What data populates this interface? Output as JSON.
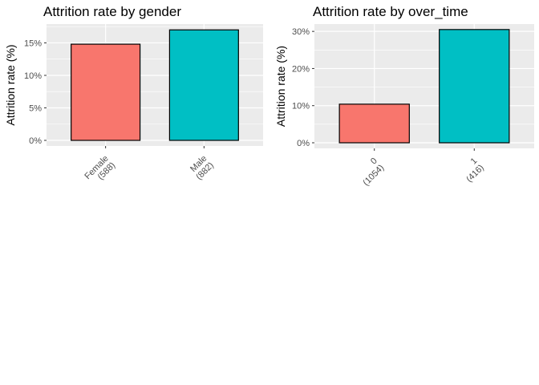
{
  "chart_data": [
    {
      "type": "bar",
      "title": "Attrition rate by gender",
      "xlabel": "",
      "ylabel": "Attrition rate (%)",
      "categories": [
        {
          "name": "Female",
          "count": "(588)"
        },
        {
          "name": "Male",
          "count": "(882)"
        }
      ],
      "values": [
        14.8,
        17.0
      ],
      "ylim": [
        0,
        17.5
      ],
      "yticks": [
        0,
        5,
        10,
        15
      ],
      "ytick_labels": [
        "0%",
        "5%",
        "10%",
        "15%"
      ],
      "bar_colors": [
        "#F8766D",
        "#00BFC4"
      ],
      "grid": true,
      "legend": "none"
    },
    {
      "type": "bar",
      "title": "Attrition rate by over_time",
      "xlabel": "",
      "ylabel": "Attrition rate (%)",
      "categories": [
        {
          "name": "0",
          "count": "(1054)"
        },
        {
          "name": "1",
          "count": "(416)"
        }
      ],
      "values": [
        10.4,
        30.5
      ],
      "ylim": [
        0,
        31.5
      ],
      "yticks": [
        0,
        10,
        20,
        30
      ],
      "ytick_labels": [
        "0%",
        "10%",
        "20%",
        "30%"
      ],
      "bar_colors": [
        "#F8766D",
        "#00BFC4"
      ],
      "grid": true,
      "legend": "none"
    }
  ],
  "style": {
    "panel_background": "#EBEBEB",
    "grid_color": "#FFFFFF",
    "bar_outline": "#000000"
  }
}
